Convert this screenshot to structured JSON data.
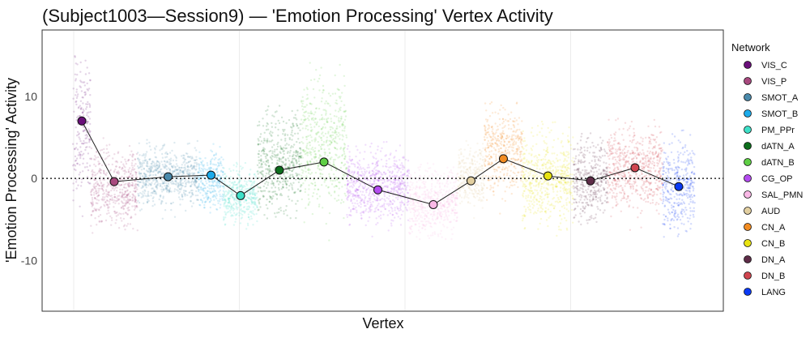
{
  "chart_data": {
    "type": "scatter",
    "title": "(Subject1003—Session9) — 'Emotion Processing' Vertex Activity",
    "xlabel": "Vertex",
    "ylabel": "'Emotion Processing' Activity",
    "ylim": [
      -16.2,
      18.1
    ],
    "xlim": [
      -954,
      19610
    ],
    "yticks": [
      -10,
      0,
      10
    ],
    "ytick_labels": [
      "-10",
      "0",
      "10"
    ],
    "x_gridlines": [
      0,
      5000,
      10000,
      15000
    ],
    "reference_line": 0,
    "grid": true,
    "legend": {
      "title": "Network",
      "placement": "right"
    },
    "series": [
      {
        "name": "VIS_C",
        "color": "#6a0f7a",
        "vertex_range": [
          -24,
          513
        ],
        "mean": 7.0,
        "range": [
          -1.0,
          14.0
        ]
      },
      {
        "name": "VIS_P",
        "color": "#a8497e",
        "vertex_range": [
          513,
          1931
        ],
        "mean": -0.4,
        "range": [
          -5.5,
          3.0
        ]
      },
      {
        "name": "SMOT_A",
        "color": "#4a8aab",
        "vertex_range": [
          1931,
          3765
        ],
        "mean": 0.2,
        "range": [
          -3.0,
          3.5
        ]
      },
      {
        "name": "SMOT_B",
        "color": "#1cabeb",
        "vertex_range": [
          3765,
          4523
        ],
        "mean": 0.4,
        "range": [
          -3.5,
          3.0
        ]
      },
      {
        "name": "PM_PPr",
        "color": "#3ee0c8",
        "vertex_range": [
          4523,
          5550
        ],
        "mean": -2.1,
        "range": [
          -5.0,
          0.8
        ]
      },
      {
        "name": "dATN_A",
        "color": "#0c6e1c",
        "vertex_range": [
          5550,
          6870
        ],
        "mean": 1.0,
        "range": [
          -3.5,
          7.0
        ]
      },
      {
        "name": "dATN_B",
        "color": "#5fcf45",
        "vertex_range": [
          6870,
          8240
        ],
        "mean": 2.0,
        "range": [
          -3.5,
          12.0
        ]
      },
      {
        "name": "CG_OP",
        "color": "#b44cf0",
        "vertex_range": [
          8240,
          10122
        ],
        "mean": -1.4,
        "range": [
          -4.8,
          3.0
        ]
      },
      {
        "name": "SAL_PMN",
        "color": "#f9b9e6",
        "vertex_range": [
          10122,
          11589
        ],
        "mean": -3.2,
        "range": [
          -6.5,
          0.5
        ]
      },
      {
        "name": "AUD",
        "color": "#e2cfa0",
        "vertex_range": [
          11589,
          12396
        ],
        "mean": -0.3,
        "range": [
          -3.0,
          4.0
        ]
      },
      {
        "name": "CN_A",
        "color": "#f28c22",
        "vertex_range": [
          12396,
          13545
        ],
        "mean": 2.4,
        "range": [
          -1.5,
          8.0
        ]
      },
      {
        "name": "CN_B",
        "color": "#e8e312",
        "vertex_range": [
          13545,
          15086
        ],
        "mean": 0.3,
        "range": [
          -5.0,
          5.0
        ]
      },
      {
        "name": "DN_A",
        "color": "#5e2c48",
        "vertex_range": [
          15086,
          16112
        ],
        "mean": -0.3,
        "range": [
          -4.5,
          4.0
        ]
      },
      {
        "name": "DN_B",
        "color": "#d0454f",
        "vertex_range": [
          16112,
          17775
        ],
        "mean": 1.3,
        "range": [
          -3.5,
          6.0
        ]
      },
      {
        "name": "LANG",
        "color": "#0a3af5",
        "vertex_range": [
          17775,
          18753
        ],
        "mean": -1.0,
        "range": [
          -6.0,
          4.0
        ]
      }
    ]
  }
}
